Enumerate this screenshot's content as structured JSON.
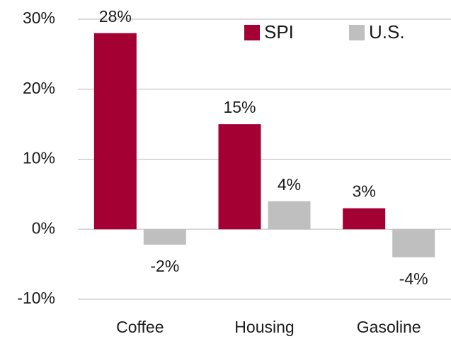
{
  "chart_data": {
    "type": "bar",
    "categories": [
      "Coffee",
      "Housing",
      "Gasoline"
    ],
    "series": [
      {
        "name": "SPI",
        "color": "#a50034",
        "values": [
          28,
          15,
          3
        ],
        "value_labels": [
          "28%",
          "15%",
          "3%"
        ]
      },
      {
        "name": "U.S.",
        "color": "#bfbfbf",
        "values": [
          -2.2,
          4,
          -4
        ],
        "value_labels": [
          "-2%",
          "4%",
          "-4%"
        ]
      }
    ],
    "ylim": [
      -10,
      30
    ],
    "yticks": [
      {
        "value": -10,
        "label": "-10%"
      },
      {
        "value": 0,
        "label": "0%"
      },
      {
        "value": 10,
        "label": "10%"
      },
      {
        "value": 20,
        "label": "20%"
      },
      {
        "value": 30,
        "label": "30%"
      }
    ],
    "grid": true,
    "legend": "top-right"
  }
}
